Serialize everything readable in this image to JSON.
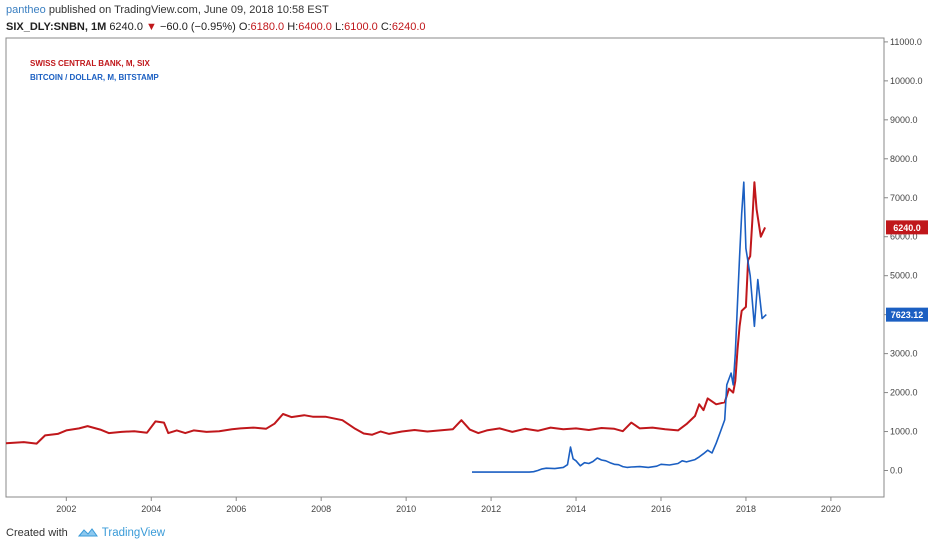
{
  "header": {
    "user": "pantheo",
    "published_text": " published on TradingView.com, June 09, 2018 10:58 EST",
    "symbol": "SIX_DLY:SNBN, 1M",
    "last": "6240.0",
    "change": "−60.0 (−0.95%)",
    "o_label": "O:",
    "o_value": "6180.0",
    "h_label": "H:",
    "h_value": "6400.0",
    "l_label": "L:",
    "l_value": "6100.0",
    "c_label": "C:",
    "c_value": "6240.0"
  },
  "footer": {
    "created_with": "Created with",
    "brand": "TradingView"
  },
  "colors": {
    "snb": "#c0171b",
    "btc": "#1b5fc2",
    "grid": "#e6e6e6",
    "axis_text": "#444444"
  },
  "chart_data": {
    "type": "line",
    "legend": [
      "SWISS CENTRAL BANK, M, SIX",
      "BITCOIN / DOLLAR, M, BITSTAMP"
    ],
    "legend_position": "top-left",
    "x_ticks": [
      "2002",
      "2004",
      "2006",
      "2008",
      "2010",
      "2012",
      "2014",
      "2016",
      "2018",
      "2020"
    ],
    "x_range": [
      2000.58,
      2021.25
    ],
    "y_ticks": [
      "0.0",
      "1000.0",
      "2000.0",
      "3000.0",
      "4000.0",
      "5000.0",
      "6000.0",
      "7000.0",
      "8000.0",
      "9000.0",
      "10000.0",
      "11000.0"
    ],
    "y_range": [
      -680,
      11100
    ],
    "grid": false,
    "series": [
      {
        "name": "SWISS CENTRAL BANK, M, SIX",
        "axis_label": "6240.0",
        "values": [
          [
            2000.58,
            700
          ],
          [
            2001.0,
            730
          ],
          [
            2001.3,
            690
          ],
          [
            2001.5,
            900
          ],
          [
            2001.8,
            940
          ],
          [
            2002.0,
            1030
          ],
          [
            2002.3,
            1080
          ],
          [
            2002.5,
            1140
          ],
          [
            2002.8,
            1050
          ],
          [
            2003.0,
            960
          ],
          [
            2003.3,
            990
          ],
          [
            2003.6,
            1010
          ],
          [
            2003.9,
            970
          ],
          [
            2004.1,
            1260
          ],
          [
            2004.3,
            1230
          ],
          [
            2004.4,
            960
          ],
          [
            2004.6,
            1030
          ],
          [
            2004.8,
            960
          ],
          [
            2005.0,
            1030
          ],
          [
            2005.3,
            990
          ],
          [
            2005.6,
            1010
          ],
          [
            2005.9,
            1060
          ],
          [
            2006.1,
            1080
          ],
          [
            2006.4,
            1100
          ],
          [
            2006.7,
            1070
          ],
          [
            2006.9,
            1200
          ],
          [
            2007.1,
            1450
          ],
          [
            2007.3,
            1370
          ],
          [
            2007.6,
            1420
          ],
          [
            2007.8,
            1380
          ],
          [
            2008.1,
            1380
          ],
          [
            2008.5,
            1290
          ],
          [
            2008.8,
            1070
          ],
          [
            2009.0,
            950
          ],
          [
            2009.2,
            920
          ],
          [
            2009.4,
            1000
          ],
          [
            2009.6,
            940
          ],
          [
            2009.9,
            1000
          ],
          [
            2010.2,
            1040
          ],
          [
            2010.5,
            1000
          ],
          [
            2010.8,
            1030
          ],
          [
            2011.1,
            1060
          ],
          [
            2011.3,
            1290
          ],
          [
            2011.5,
            1050
          ],
          [
            2011.7,
            960
          ],
          [
            2011.9,
            1030
          ],
          [
            2012.2,
            1080
          ],
          [
            2012.5,
            990
          ],
          [
            2012.8,
            1070
          ],
          [
            2013.1,
            1020
          ],
          [
            2013.4,
            1100
          ],
          [
            2013.7,
            1060
          ],
          [
            2014.0,
            1080
          ],
          [
            2014.3,
            1040
          ],
          [
            2014.6,
            1090
          ],
          [
            2014.9,
            1070
          ],
          [
            2015.1,
            1010
          ],
          [
            2015.3,
            1230
          ],
          [
            2015.5,
            1080
          ],
          [
            2015.8,
            1100
          ],
          [
            2016.1,
            1060
          ],
          [
            2016.4,
            1030
          ],
          [
            2016.6,
            1190
          ],
          [
            2016.8,
            1400
          ],
          [
            2016.9,
            1700
          ],
          [
            2017.0,
            1550
          ],
          [
            2017.1,
            1850
          ],
          [
            2017.3,
            1700
          ],
          [
            2017.5,
            1750
          ],
          [
            2017.6,
            2100
          ],
          [
            2017.7,
            2000
          ],
          [
            2017.75,
            2300
          ],
          [
            2017.8,
            3100
          ],
          [
            2017.85,
            3700
          ],
          [
            2017.9,
            4100
          ],
          [
            2018.0,
            4200
          ],
          [
            2018.05,
            5400
          ],
          [
            2018.1,
            5500
          ],
          [
            2018.15,
            6400
          ],
          [
            2018.2,
            7400
          ],
          [
            2018.25,
            6700
          ],
          [
            2018.35,
            6000
          ],
          [
            2018.45,
            6240
          ]
        ]
      },
      {
        "name": "BITCOIN / DOLLAR, M, BITSTAMP",
        "axis_label": "7623.12",
        "values": [
          [
            2011.55,
            -40
          ],
          [
            2012.0,
            -40
          ],
          [
            2012.5,
            -40
          ],
          [
            2012.9,
            -40
          ],
          [
            2013.0,
            -30
          ],
          [
            2013.1,
            0
          ],
          [
            2013.2,
            40
          ],
          [
            2013.3,
            60
          ],
          [
            2013.5,
            50
          ],
          [
            2013.7,
            80
          ],
          [
            2013.8,
            150
          ],
          [
            2013.87,
            600
          ],
          [
            2013.93,
            300
          ],
          [
            2014.0,
            250
          ],
          [
            2014.1,
            120
          ],
          [
            2014.2,
            200
          ],
          [
            2014.3,
            180
          ],
          [
            2014.4,
            230
          ],
          [
            2014.5,
            320
          ],
          [
            2014.6,
            270
          ],
          [
            2014.7,
            250
          ],
          [
            2014.8,
            200
          ],
          [
            2014.9,
            160
          ],
          [
            2015.0,
            150
          ],
          [
            2015.1,
            100
          ],
          [
            2015.2,
            80
          ],
          [
            2015.3,
            90
          ],
          [
            2015.5,
            100
          ],
          [
            2015.7,
            80
          ],
          [
            2015.9,
            110
          ],
          [
            2016.0,
            160
          ],
          [
            2016.2,
            140
          ],
          [
            2016.4,
            180
          ],
          [
            2016.5,
            250
          ],
          [
            2016.6,
            220
          ],
          [
            2016.8,
            280
          ],
          [
            2016.9,
            350
          ],
          [
            2017.0,
            430
          ],
          [
            2017.1,
            520
          ],
          [
            2017.2,
            450
          ],
          [
            2017.3,
            700
          ],
          [
            2017.4,
            1000
          ],
          [
            2017.5,
            1300
          ],
          [
            2017.55,
            2200
          ],
          [
            2017.65,
            2500
          ],
          [
            2017.7,
            2200
          ],
          [
            2017.75,
            3000
          ],
          [
            2017.8,
            4300
          ],
          [
            2017.85,
            5500
          ],
          [
            2017.9,
            6600
          ],
          [
            2017.95,
            7400
          ],
          [
            2018.0,
            5700
          ],
          [
            2018.1,
            5000
          ],
          [
            2018.2,
            3700
          ],
          [
            2018.28,
            4900
          ],
          [
            2018.38,
            3900
          ],
          [
            2018.48,
            4000
          ]
        ]
      }
    ]
  }
}
